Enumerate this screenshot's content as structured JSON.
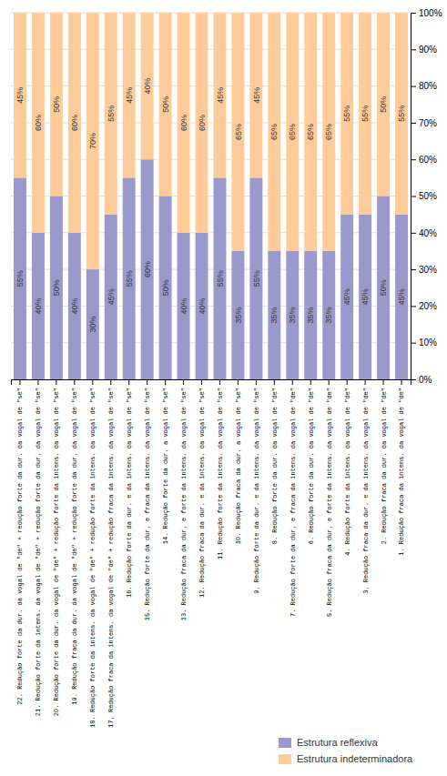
{
  "chart_data": {
    "type": "bar",
    "stacked": true,
    "categories": [
      "22. Redução forte da dur. da vogal de \"de\" + redução forte da dur. da vogal de \"se\"",
      "21. Redução forte da intens. da vogal de \"de\" + redução forte da dur. da vogal de \"se\"",
      "20. Redução forte da dur. da vogal de \"de\" + redução forte da intens. da vogal de \"se\"",
      "19. Redução fraca da dur. da vogal de \"de\" + redução forte da dur. da vogal de \"se\"",
      "18. Redução forte da intens. da vogal de \"de\" + redução forte da intens. da vogal de \"se\"",
      "17. Redução fraca da intens. da vogal de \"de\" + redução fraca da intens. da vogal de \"se\"",
      "16. Redução forte da dur. e da intens. da vogal de \"se\"",
      "15. Redução forte da dur. e fraca da intens. da vogal de \"se\"",
      "14. Redução forte da dur. a vogal de \"se\"",
      "13. Redução fraca da dur. e forte da intens. da vogal de \"se\"",
      "12. Redução fraca da dur. e da intens. da vogal de \"se\"",
      "11. Redução forte da intens. da vogal de \"se\"",
      "10. Redução fraca da dur. a vogal de \"se\"",
      "9. Redução forte da dur. e da intens. da vogal de \"se\"",
      "8. Redução forte da dur. da vogal de \"de\"",
      "7. Redução forte da dur. e fraca da intens. da vogal de \"de\"",
      "6. Redução forte da dur. da vogal de \"de\"",
      "5. Redução fraca da dur. e forte da intens. da vogal de \"de\"",
      "4. Redução forte da intens. da vogal de \"de\"",
      "3. Redução fraca da dur. e da intens. da vogal de \"de\"",
      "2. Redução fraca da dur. da vogal de \"de\"",
      "1. Redução fraca da intens. da vogal de \"de\""
    ],
    "series": [
      {
        "name": "Estrutura reflexiva",
        "color": "#9999cc",
        "values": [
          55,
          40,
          50,
          40,
          30,
          45,
          55,
          60,
          50,
          40,
          40,
          55,
          35,
          55,
          35,
          35,
          35,
          35,
          45,
          45,
          50,
          45
        ],
        "value_labels": [
          "55%",
          "40%",
          "50%",
          "40%",
          "30%",
          "45%",
          "55%",
          "60%",
          "50%",
          "40%",
          "40%",
          "55%",
          "35%",
          "55%",
          "35%",
          "35%",
          "35%",
          "35%",
          "45%",
          "45%",
          "50%",
          "45%"
        ]
      },
      {
        "name": "Estrutura indeterminadora",
        "color": "#ffcc99",
        "values": [
          45,
          60,
          50,
          60,
          70,
          55,
          45,
          40,
          50,
          60,
          60,
          45,
          65,
          45,
          65,
          65,
          65,
          65,
          55,
          55,
          50,
          55
        ],
        "value_labels": [
          "45%",
          "60%",
          "50%",
          "60%",
          "70%",
          "55%",
          "45%",
          "40%",
          "50%",
          "60%",
          "60%",
          "45%",
          "65%",
          "45%",
          "65%",
          "65%",
          "65%",
          "65%",
          "55%",
          "55%",
          "50%",
          "55%"
        ]
      }
    ],
    "ylim": [
      0,
      100
    ],
    "yticks": [
      {
        "value": 0,
        "label": "0%"
      },
      {
        "value": 10,
        "label": "10%"
      },
      {
        "value": 20,
        "label": "20%"
      },
      {
        "value": 30,
        "label": "30%"
      },
      {
        "value": 40,
        "label": "40%"
      },
      {
        "value": 50,
        "label": "50%"
      },
      {
        "value": 60,
        "label": "60%"
      },
      {
        "value": 70,
        "label": "70%"
      },
      {
        "value": 80,
        "label": "80%"
      },
      {
        "value": 90,
        "label": "90%"
      },
      {
        "value": 100,
        "label": "100%"
      }
    ],
    "grid": true,
    "legend": "lower right",
    "data_labels": true
  }
}
